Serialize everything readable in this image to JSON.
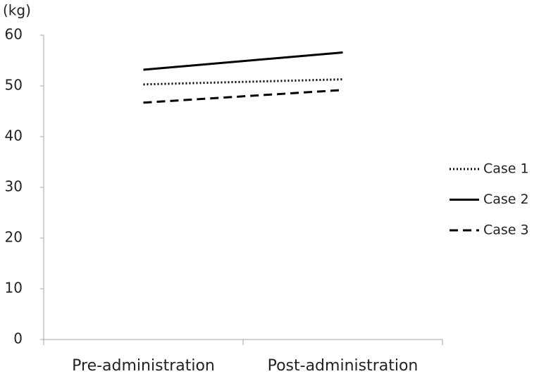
{
  "chart_data": {
    "type": "line",
    "y_label": "(kg)",
    "categories": [
      "Pre-administration",
      "Post-administration"
    ],
    "series": [
      {
        "name": "Case 1",
        "color": "#000000",
        "dash": "dotted",
        "values": [
          50.3,
          51.3
        ]
      },
      {
        "name": "Case 2",
        "color": "#000000",
        "dash": "solid",
        "values": [
          53.2,
          56.6
        ]
      },
      {
        "name": "Case 3",
        "color": "#000000",
        "dash": "dashed",
        "values": [
          46.7,
          49.2
        ]
      }
    ],
    "ylim": [
      0,
      60
    ],
    "yticks": [
      0,
      10,
      20,
      30,
      40,
      50,
      60
    ],
    "grid": false,
    "legend": "right"
  }
}
